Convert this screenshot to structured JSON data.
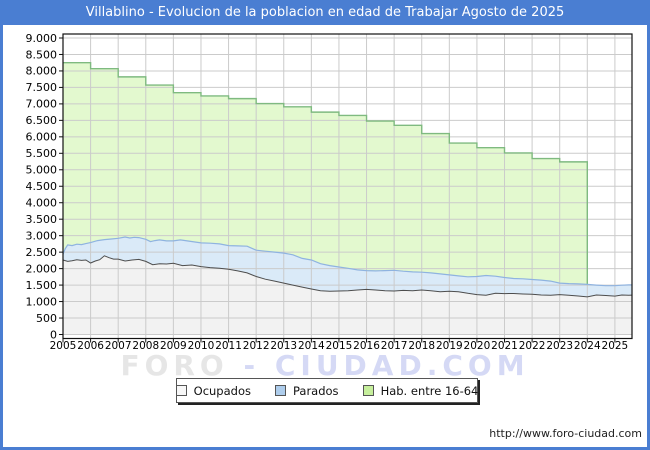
{
  "window": {
    "title": "Villablino - Evolucion de la poblacion en edad de Trabajar Agosto de 2025",
    "title_bar_color": "#4a7ed2",
    "frame_color": "#4a7ed2"
  },
  "watermark": {
    "left": "FORO",
    "right": "- CIUDAD.COM"
  },
  "legend": {
    "position": "bottom-center",
    "items": [
      {
        "label": "Ocupados",
        "color": "#f7f7f7"
      },
      {
        "label": "Parados",
        "color": "#aecdec"
      },
      {
        "label": "Hab. entre 16-64",
        "color": "#c6ef9c"
      }
    ]
  },
  "footer": {
    "url": "http://www.foro-ciudad.com"
  },
  "colors": {
    "grid": "#cbcbcb",
    "plot_border": "#111111",
    "hab_fill": "#e3f9cf",
    "hab_line": "#7fba80",
    "parados_fill": "#daeaf8",
    "parados_line": "#8fb3e0",
    "ocupados_fill": "#f2f2f2",
    "ocupados_line": "#4d4d4d"
  },
  "chart_data": {
    "type": "area",
    "title": "Villablino - Evolucion de la poblacion en edad de Trabajar Agosto de 2025",
    "grid": true,
    "legend_position": "bottom-center",
    "x_axis": {
      "range": [
        2005,
        2025.62
      ],
      "tick_years": [
        2005,
        2006,
        2007,
        2008,
        2009,
        2010,
        2011,
        2012,
        2013,
        2014,
        2015,
        2016,
        2017,
        2018,
        2019,
        2020,
        2021,
        2022,
        2023,
        2024,
        2025
      ]
    },
    "y_axis": {
      "min": 0,
      "max": 9000,
      "step": 500,
      "tick_labels": [
        "9.000",
        "8.500",
        "8.000",
        "7.500",
        "7.000",
        "6.500",
        "6.000",
        "5.500",
        "5.000",
        "4.500",
        "4.000",
        "3.500",
        "3.000",
        "2.500",
        "2.000",
        "1.500",
        "1.000",
        "500",
        "0"
      ]
    },
    "series": [
      {
        "name": "Hab. entre 16-64",
        "render": "step-area",
        "years": [
          2005,
          2006,
          2007,
          2008,
          2009,
          2010,
          2011,
          2012,
          2013,
          2014,
          2015,
          2016,
          2017,
          2018,
          2019,
          2020,
          2021,
          2022,
          2023
        ],
        "values": [
          8250,
          8070,
          7820,
          7570,
          7340,
          7240,
          7160,
          7010,
          6910,
          6750,
          6650,
          6480,
          6350,
          6100,
          5810,
          5670,
          5510,
          5340,
          5240
        ],
        "extends_to": 2024.0,
        "fill": "#e3f9cf",
        "line": "#7fba80"
      },
      {
        "name": "Parados",
        "render": "area",
        "note": "top edge = Ocupados + Parados (stacked band)",
        "points": [
          [
            2005.0,
            2430
          ],
          [
            2005.08,
            2600
          ],
          [
            2005.17,
            2720
          ],
          [
            2005.33,
            2700
          ],
          [
            2005.5,
            2740
          ],
          [
            2005.67,
            2730
          ],
          [
            2005.83,
            2760
          ],
          [
            2006.0,
            2790
          ],
          [
            2006.25,
            2850
          ],
          [
            2006.5,
            2880
          ],
          [
            2006.75,
            2900
          ],
          [
            2007.0,
            2920
          ],
          [
            2007.25,
            2960
          ],
          [
            2007.42,
            2930
          ],
          [
            2007.58,
            2950
          ],
          [
            2007.75,
            2940
          ],
          [
            2008.0,
            2890
          ],
          [
            2008.17,
            2820
          ],
          [
            2008.33,
            2850
          ],
          [
            2008.5,
            2870
          ],
          [
            2008.75,
            2840
          ],
          [
            2009.0,
            2840
          ],
          [
            2009.25,
            2870
          ],
          [
            2009.5,
            2840
          ],
          [
            2009.75,
            2810
          ],
          [
            2010.0,
            2780
          ],
          [
            2010.33,
            2770
          ],
          [
            2010.67,
            2750
          ],
          [
            2011.0,
            2700
          ],
          [
            2011.33,
            2690
          ],
          [
            2011.67,
            2680
          ],
          [
            2012.0,
            2560
          ],
          [
            2012.33,
            2530
          ],
          [
            2012.67,
            2500
          ],
          [
            2013.0,
            2470
          ],
          [
            2013.33,
            2420
          ],
          [
            2013.67,
            2310
          ],
          [
            2014.0,
            2260
          ],
          [
            2014.33,
            2150
          ],
          [
            2014.67,
            2090
          ],
          [
            2015.0,
            2050
          ],
          [
            2015.33,
            2010
          ],
          [
            2015.67,
            1960
          ],
          [
            2016.0,
            1940
          ],
          [
            2016.33,
            1930
          ],
          [
            2016.67,
            1940
          ],
          [
            2017.0,
            1950
          ],
          [
            2017.33,
            1920
          ],
          [
            2017.67,
            1900
          ],
          [
            2018.0,
            1890
          ],
          [
            2018.33,
            1870
          ],
          [
            2018.67,
            1840
          ],
          [
            2019.0,
            1810
          ],
          [
            2019.33,
            1780
          ],
          [
            2019.67,
            1750
          ],
          [
            2020.0,
            1760
          ],
          [
            2020.33,
            1790
          ],
          [
            2020.67,
            1770
          ],
          [
            2021.0,
            1730
          ],
          [
            2021.33,
            1700
          ],
          [
            2021.67,
            1690
          ],
          [
            2022.0,
            1670
          ],
          [
            2022.33,
            1650
          ],
          [
            2022.67,
            1620
          ],
          [
            2023.0,
            1560
          ],
          [
            2023.33,
            1545
          ],
          [
            2023.67,
            1535
          ],
          [
            2024.0,
            1520
          ],
          [
            2024.33,
            1500
          ],
          [
            2024.67,
            1480
          ],
          [
            2025.0,
            1480
          ],
          [
            2025.25,
            1495
          ],
          [
            2025.5,
            1505
          ],
          [
            2025.62,
            1505
          ]
        ],
        "fill": "#daeaf8",
        "line": "#8fb3e0"
      },
      {
        "name": "Ocupados",
        "render": "area",
        "points": [
          [
            2005.0,
            2260
          ],
          [
            2005.17,
            2220
          ],
          [
            2005.33,
            2240
          ],
          [
            2005.5,
            2270
          ],
          [
            2005.67,
            2250
          ],
          [
            2005.83,
            2260
          ],
          [
            2006.0,
            2170
          ],
          [
            2006.17,
            2230
          ],
          [
            2006.33,
            2270
          ],
          [
            2006.5,
            2390
          ],
          [
            2006.67,
            2330
          ],
          [
            2006.83,
            2290
          ],
          [
            2007.0,
            2290
          ],
          [
            2007.25,
            2230
          ],
          [
            2007.5,
            2260
          ],
          [
            2007.75,
            2280
          ],
          [
            2008.0,
            2220
          ],
          [
            2008.25,
            2120
          ],
          [
            2008.5,
            2150
          ],
          [
            2008.75,
            2140
          ],
          [
            2009.0,
            2160
          ],
          [
            2009.33,
            2090
          ],
          [
            2009.67,
            2110
          ],
          [
            2010.0,
            2060
          ],
          [
            2010.33,
            2030
          ],
          [
            2010.67,
            2010
          ],
          [
            2011.0,
            1980
          ],
          [
            2011.33,
            1930
          ],
          [
            2011.67,
            1870
          ],
          [
            2012.0,
            1760
          ],
          [
            2012.33,
            1680
          ],
          [
            2012.67,
            1620
          ],
          [
            2013.0,
            1560
          ],
          [
            2013.33,
            1500
          ],
          [
            2013.67,
            1440
          ],
          [
            2014.0,
            1380
          ],
          [
            2014.33,
            1330
          ],
          [
            2014.67,
            1310
          ],
          [
            2015.0,
            1320
          ],
          [
            2015.33,
            1330
          ],
          [
            2015.67,
            1350
          ],
          [
            2016.0,
            1370
          ],
          [
            2016.33,
            1350
          ],
          [
            2016.67,
            1330
          ],
          [
            2017.0,
            1320
          ],
          [
            2017.33,
            1340
          ],
          [
            2017.67,
            1330
          ],
          [
            2018.0,
            1350
          ],
          [
            2018.33,
            1330
          ],
          [
            2018.67,
            1300
          ],
          [
            2019.0,
            1310
          ],
          [
            2019.33,
            1300
          ],
          [
            2019.67,
            1250
          ],
          [
            2020.0,
            1210
          ],
          [
            2020.33,
            1190
          ],
          [
            2020.67,
            1250
          ],
          [
            2021.0,
            1240
          ],
          [
            2021.33,
            1245
          ],
          [
            2021.67,
            1230
          ],
          [
            2022.0,
            1220
          ],
          [
            2022.33,
            1200
          ],
          [
            2022.67,
            1190
          ],
          [
            2023.0,
            1210
          ],
          [
            2023.33,
            1190
          ],
          [
            2023.67,
            1170
          ],
          [
            2024.0,
            1140
          ],
          [
            2024.33,
            1200
          ],
          [
            2024.67,
            1185
          ],
          [
            2025.0,
            1165
          ],
          [
            2025.25,
            1200
          ],
          [
            2025.5,
            1190
          ],
          [
            2025.62,
            1195
          ]
        ],
        "fill": "#f2f2f2",
        "line": "#4d4d4d"
      }
    ]
  }
}
